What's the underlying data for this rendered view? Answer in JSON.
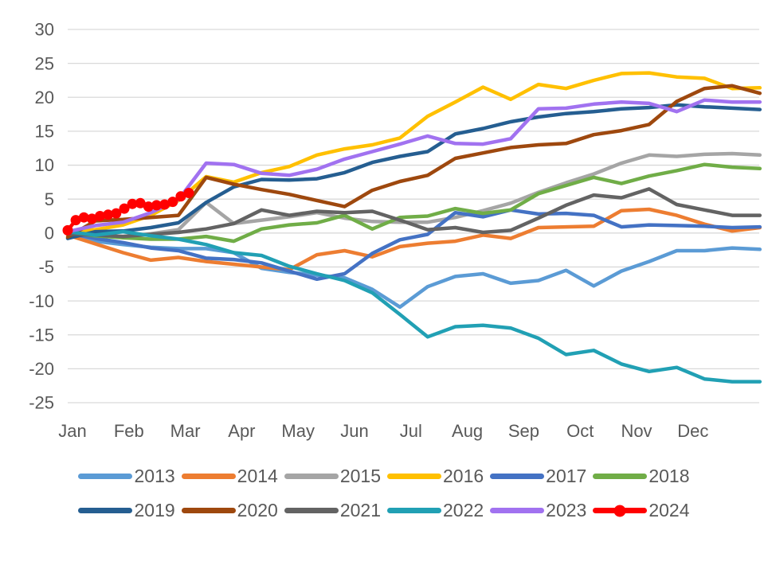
{
  "chart_data": {
    "type": "line",
    "title": "",
    "xlabel": "",
    "ylabel": "",
    "x_tick_labels": [
      "Jan",
      "Feb",
      "Mar",
      "Apr",
      "May",
      "Jun",
      "Jul",
      "Aug",
      "Sep",
      "Oct",
      "Nov",
      "Dec"
    ],
    "y_ticks": [
      30,
      25,
      20,
      15,
      10,
      5,
      0,
      -5,
      -10,
      -15,
      -20,
      -25
    ],
    "ylim": [
      -25,
      30
    ],
    "xlim_months": [
      0,
      12
    ],
    "grid": "horizontal-only",
    "gridline_color": "#D9D9D9",
    "axis_label_color": "#595959",
    "legend_position": "bottom-two-rows",
    "series": [
      {
        "name": "2013",
        "color": "#5B9BD5",
        "values": [
          0.1,
          -1.2,
          -1.7,
          -2.1,
          -2.3,
          -2.3,
          -2.9,
          -5.2,
          -5.8,
          -6.2,
          -6.6,
          -8.3,
          -10.9,
          -7.9,
          -6.4,
          -6.0,
          -7.4,
          -7.0,
          -5.5,
          -7.8,
          -5.6,
          -4.2,
          -2.6,
          -2.6,
          -2.2,
          -2.4
        ]
      },
      {
        "name": "2014",
        "color": "#ED7D31",
        "values": [
          -0.3,
          -1.6,
          -2.9,
          -4.0,
          -3.6,
          -4.2,
          -4.6,
          -5.0,
          -5.4,
          -3.2,
          -2.6,
          -3.5,
          -2.0,
          -1.5,
          -1.2,
          -0.3,
          -0.8,
          0.8,
          0.9,
          1.0,
          3.3,
          3.5,
          2.6,
          1.3,
          0.3,
          0.8
        ]
      },
      {
        "name": "2015",
        "color": "#A5A5A5",
        "values": [
          0.0,
          -0.4,
          -0.5,
          -0.1,
          0.5,
          4.5,
          1.4,
          1.9,
          2.4,
          3.0,
          2.2,
          1.7,
          1.6,
          1.6,
          2.3,
          3.3,
          4.4,
          6.0,
          7.4,
          8.7,
          10.3,
          11.5,
          11.3,
          11.6,
          11.7,
          11.5
        ]
      },
      {
        "name": "2016",
        "color": "#FFC000",
        "values": [
          0.2,
          0.5,
          1.2,
          2.6,
          4.8,
          8.3,
          7.5,
          8.9,
          9.8,
          11.5,
          12.4,
          13.0,
          14.0,
          17.2,
          19.3,
          21.5,
          19.7,
          21.9,
          21.3,
          22.5,
          23.5,
          23.6,
          23.0,
          22.8,
          21.3,
          21.4
        ]
      },
      {
        "name": "2017",
        "color": "#4472C4",
        "values": [
          0.0,
          -0.8,
          -1.4,
          -2.2,
          -2.6,
          -3.7,
          -3.9,
          -4.4,
          -5.6,
          -6.8,
          -6.0,
          -3.0,
          -1.0,
          -0.2,
          3.0,
          2.4,
          3.4,
          2.8,
          2.9,
          2.6,
          0.9,
          1.2,
          1.1,
          1.0,
          0.8,
          0.9
        ]
      },
      {
        "name": "2018",
        "color": "#70AD47",
        "values": [
          0.0,
          -0.4,
          -0.7,
          -0.9,
          -0.9,
          -0.5,
          -1.2,
          0.6,
          1.2,
          1.5,
          2.6,
          0.6,
          2.3,
          2.5,
          3.6,
          2.9,
          3.4,
          5.8,
          7.0,
          8.2,
          7.3,
          8.4,
          9.2,
          10.1,
          9.7,
          9.5
        ]
      },
      {
        "name": "2019",
        "color": "#255E91",
        "values": [
          -0.8,
          0.2,
          0.3,
          0.8,
          1.5,
          4.5,
          6.8,
          7.9,
          7.8,
          8.0,
          8.9,
          10.4,
          11.3,
          12.0,
          14.6,
          15.4,
          16.4,
          17.1,
          17.6,
          17.9,
          18.3,
          18.5,
          18.9,
          18.6,
          18.4,
          18.2
        ]
      },
      {
        "name": "2020",
        "color": "#9E480E",
        "values": [
          -0.6,
          1.8,
          2.0,
          2.3,
          2.6,
          8.2,
          7.2,
          6.4,
          5.7,
          4.8,
          3.9,
          6.3,
          7.6,
          8.5,
          11.0,
          11.8,
          12.6,
          13.0,
          13.2,
          14.5,
          15.1,
          16.0,
          19.4,
          21.3,
          21.7,
          20.6
        ]
      },
      {
        "name": "2021",
        "color": "#636363",
        "values": [
          -0.1,
          -0.3,
          -0.5,
          -0.2,
          0.1,
          0.6,
          1.4,
          3.4,
          2.6,
          3.2,
          3.0,
          3.2,
          1.9,
          0.5,
          0.8,
          0.1,
          0.4,
          2.2,
          4.1,
          5.6,
          5.2,
          6.5,
          4.2,
          3.4,
          2.6,
          2.6
        ]
      },
      {
        "name": "2022",
        "color": "#21A0B4",
        "values": [
          0.2,
          -0.3,
          0.2,
          -0.4,
          -0.9,
          -1.7,
          -2.9,
          -3.3,
          -4.9,
          -6.0,
          -7.0,
          -8.8,
          -12.0,
          -15.3,
          -13.8,
          -13.6,
          -14.0,
          -15.5,
          -17.9,
          -17.3,
          -19.3,
          -20.4,
          -19.8,
          -21.5,
          -21.9,
          -21.9
        ]
      },
      {
        "name": "2023",
        "color": "#A172F0",
        "values": [
          0.2,
          1.1,
          1.6,
          3.0,
          4.9,
          10.3,
          10.1,
          8.8,
          8.5,
          9.4,
          10.9,
          12.0,
          13.1,
          14.3,
          13.2,
          13.1,
          13.9,
          18.3,
          18.4,
          19.0,
          19.3,
          19.1,
          17.9,
          19.6,
          19.3,
          19.3
        ]
      },
      {
        "name": "2024",
        "color": "#FF0000",
        "markers": true,
        "x": [
          0,
          0.14,
          0.28,
          0.42,
          0.56,
          0.7,
          0.84,
          0.98,
          1.12,
          1.26,
          1.4,
          1.54,
          1.68,
          1.82,
          1.96,
          2.1
        ],
        "values": [
          0.4,
          1.9,
          2.3,
          2.1,
          2.5,
          2.7,
          2.9,
          3.6,
          4.3,
          4.4,
          3.9,
          4.1,
          4.2,
          4.6,
          5.4,
          5.9
        ]
      }
    ]
  },
  "legend": {
    "row1_names": [
      "2013",
      "2014",
      "2015",
      "2016",
      "2017",
      "2018"
    ],
    "row2_names": [
      "2019",
      "2020",
      "2021",
      "2022",
      "2023",
      "2024"
    ]
  }
}
